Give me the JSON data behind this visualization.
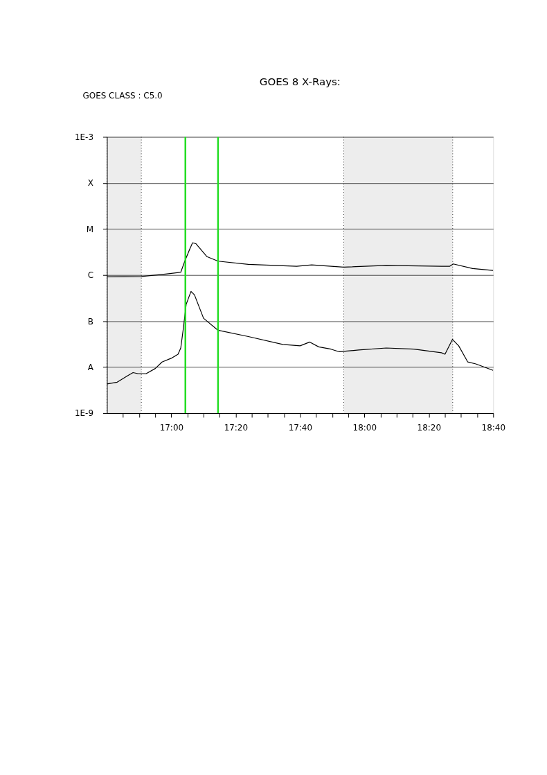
{
  "chart_data": {
    "type": "line",
    "title": "GOES 8 X-Rays:",
    "annotations": [
      "GOES CLASS : C5.0"
    ],
    "xlim": [
      16.6667,
      18.6667
    ],
    "xticks": [
      {
        "value": 16.75,
        "label": null
      },
      {
        "value": 16.8333,
        "label": null
      },
      {
        "value": 16.9167,
        "label": null
      },
      {
        "value": 17,
        "label": "17:00"
      },
      {
        "value": 17.0833,
        "label": null
      },
      {
        "value": 17.1667,
        "label": null
      },
      {
        "value": 17.25,
        "label": null
      },
      {
        "value": 17.3333,
        "label": "17:20"
      },
      {
        "value": 17.4167,
        "label": null
      },
      {
        "value": 17.5,
        "label": null
      },
      {
        "value": 17.5833,
        "label": null
      },
      {
        "value": 17.6667,
        "label": "17:40"
      },
      {
        "value": 17.75,
        "label": null
      },
      {
        "value": 17.8333,
        "label": null
      },
      {
        "value": 17.9167,
        "label": null
      },
      {
        "value": 18,
        "label": "18:00"
      },
      {
        "value": 18.0833,
        "label": null
      },
      {
        "value": 18.1667,
        "label": null
      },
      {
        "value": 18.25,
        "label": null
      },
      {
        "value": 18.3333,
        "label": "18:20"
      },
      {
        "value": 18.4167,
        "label": null
      },
      {
        "value": 18.5,
        "label": null
      },
      {
        "value": 18.5833,
        "label": null
      },
      {
        "value": 18.6667,
        "label": "18:40"
      }
    ],
    "ylim": [
      1e-09,
      0.001
    ],
    "log": true,
    "yticks": [
      {
        "value": 1e-09,
        "label": "1E-9"
      },
      {
        "value": 1e-08,
        "label": "A"
      },
      {
        "value": 1e-07,
        "label": "B"
      },
      {
        "value": 1e-06,
        "label": "C"
      },
      {
        "value": 1e-05,
        "label": "M"
      },
      {
        "value": 0.0001,
        "label": "X"
      },
      {
        "value": 0.001,
        "label": "1E-3"
      }
    ],
    "grid": "y",
    "line_style": "solid",
    "series": [
      {
        "color": "#000000",
        "x": [
          16.667,
          16.845,
          16.97,
          17.049,
          17.07,
          17.095,
          17.11,
          17.127,
          17.185,
          17.242,
          17.399,
          17.649,
          17.727,
          17.892,
          18.113,
          18.399,
          18.442,
          18.46,
          18.56,
          18.666
        ],
        "values": [
          9.1e-07,
          9.3e-07,
          1.05e-06,
          1.15e-06,
          2e-06,
          3.6e-06,
          5e-06,
          4.8e-06,
          2.5e-06,
          2e-06,
          1.7e-06,
          1.55e-06,
          1.66e-06,
          1.48e-06,
          1.62e-06,
          1.55e-06,
          1.55e-06,
          1.74e-06,
          1.38e-06,
          1.26e-06
        ]
      },
      {
        "color": "#000000",
        "x": [
          16.667,
          16.72,
          16.774,
          16.802,
          16.827,
          16.87,
          16.917,
          16.952,
          16.999,
          17.035,
          17.049,
          17.063,
          17.077,
          17.102,
          17.12,
          17.167,
          17.242,
          17.399,
          17.577,
          17.667,
          17.717,
          17.763,
          17.827,
          17.87,
          17.97,
          18.113,
          18.256,
          18.399,
          18.417,
          18.456,
          18.488,
          18.535,
          18.577,
          18.666
        ],
        "values": [
          4.3e-09,
          4.7e-09,
          6.5e-09,
          7.6e-09,
          7.2e-09,
          7.2e-09,
          9.3e-09,
          1.29e-08,
          1.55e-08,
          1.9e-08,
          2.6e-08,
          7.2e-08,
          2.3e-07,
          4.4e-07,
          3.7e-07,
          1.15e-07,
          6.3e-08,
          4.6e-08,
          3.1e-08,
          2.9e-08,
          3.5e-08,
          2.75e-08,
          2.45e-08,
          2.15e-08,
          2.35e-08,
          2.6e-08,
          2.45e-08,
          2.05e-08,
          1.9e-08,
          4e-08,
          2.9e-08,
          1.29e-08,
          1.17e-08,
          8.5e-09
        ]
      }
    ],
    "ref_lines": [
      {
        "axis": "x",
        "value": 17.073,
        "color": "#22dd22"
      },
      {
        "axis": "x",
        "value": 17.242,
        "color": "#22dd22"
      }
    ],
    "bands": [
      {
        "axis": "x",
        "from": 16.6667,
        "to": 16.845
      },
      {
        "axis": "x",
        "from": 17.893,
        "to": 18.457
      }
    ]
  }
}
